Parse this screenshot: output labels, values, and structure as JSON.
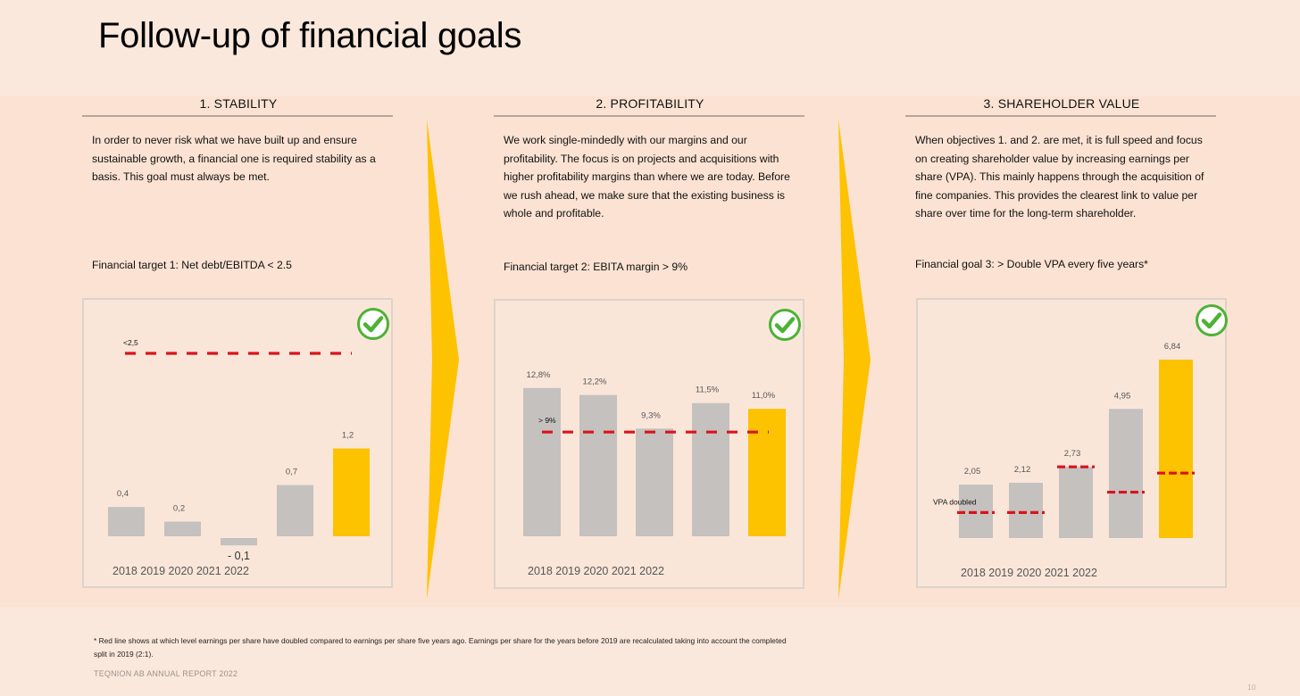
{
  "page": {
    "title": "Follow-up of financial goals",
    "footnote": "* Red line shows at which level earnings per share have doubled compared to earnings per share five years ago. Earnings per share for the years before 2019 are recalculated taking into account the completed split in 2019 (2:1).",
    "source": "TEQNION AB ANNUAL REPORT 2022",
    "page_number": "10"
  },
  "colors": {
    "background": "#fbe8dc",
    "bar_gray": "#c4c1bf",
    "bar_highlight": "#fdc200",
    "target_line": "#d9141b",
    "arrow": "#fdc200",
    "check_green": "#4db234"
  },
  "icons": {
    "check": "check-circle-icon",
    "arrow": "chevron-right-arrow-icon"
  },
  "panels": [
    {
      "heading": "1. STABILITY",
      "text": "In order to never risk what we have built up and ensure sustainable growth, a financial one is required stability as a basis. This goal must always be met.",
      "target": "Financial target 1: Net debt/EBITDA < 2.5"
    },
    {
      "heading": "2. PROFITABILITY",
      "text": "We work single-mindedly with our margins and our profitability. The focus is on projects and acquisitions with higher profitability margins than where we are today. Before we rush ahead, we make sure that the existing business is whole and profitable.",
      "target": "Financial target 2: EBITA margin > 9%"
    },
    {
      "heading": "3. SHAREHOLDER VALUE",
      "text": "When objectives 1. and 2. are met, it is full speed and focus on creating shareholder value by increasing earnings per share (VPA). This mainly happens through the acquisition of fine companies. This provides the clearest link to value per share over time for the long-term shareholder.",
      "target": "Financial goal 3: > Double VPA every five years*"
    }
  ],
  "chart_data": [
    {
      "type": "bar",
      "categories": [
        "2018",
        "2019",
        "2020",
        "2021",
        "2022"
      ],
      "years_label": "2018 2019 2020 2021 2022",
      "values": [
        0.4,
        0.2,
        -0.1,
        0.7,
        1.2
      ],
      "value_labels": [
        "0,4",
        "0,2",
        "- 0,1",
        "0,7",
        "1,2"
      ],
      "highlight_index": 4,
      "target_line": {
        "value": 2.5,
        "label": "<2,5"
      }
    },
    {
      "type": "bar",
      "categories": [
        "2018",
        "2019",
        "2020",
        "2021",
        "2022"
      ],
      "years_label": "2018 2019 2020 2021 2022",
      "values": [
        12.8,
        12.2,
        9.3,
        11.5,
        11.0
      ],
      "value_labels": [
        "12,8%",
        "12,2%",
        "9,3%",
        "11,5%",
        "11,0%"
      ],
      "highlight_index": 4,
      "target_line": {
        "value": 9,
        "label": "> 9%"
      }
    },
    {
      "type": "bar",
      "categories": [
        "2018",
        "2019",
        "2020",
        "2021",
        "2022"
      ],
      "years_label": "2018 2019 2020 2021 2022",
      "values": [
        2.05,
        2.12,
        2.73,
        4.95,
        6.84
      ],
      "value_labels": [
        "2,05",
        "2,12",
        "2,73",
        "4,95",
        "6,84"
      ],
      "highlight_index": 4,
      "doubling_levels": [
        0.98,
        0.98,
        2.73,
        1.76,
        2.49
      ],
      "doubling_label": "VPA doubled"
    }
  ]
}
